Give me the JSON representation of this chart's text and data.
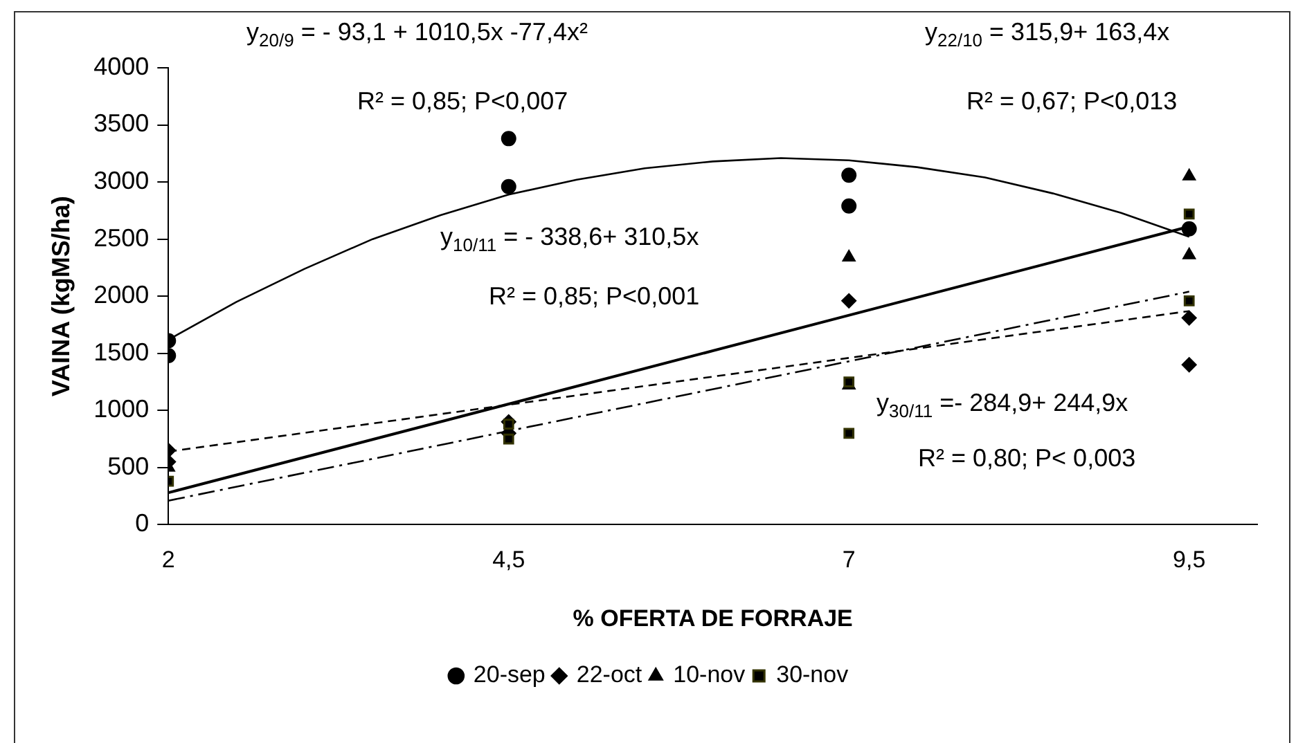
{
  "chart_data": {
    "type": "scatter",
    "xlabel": "% OFERTA DE FORRAJE",
    "ylabel": "VAINA (kgMS/ha)",
    "xlim": [
      2,
      10
    ],
    "xticks": [
      {
        "value": 2,
        "label": "2"
      },
      {
        "value": 4.5,
        "label": "4,5"
      },
      {
        "value": 7,
        "label": "7"
      },
      {
        "value": 9.5,
        "label": "9,5"
      }
    ],
    "ylim": [
      0,
      4000
    ],
    "yticks": [
      0,
      500,
      1000,
      1500,
      2000,
      2500,
      3000,
      3500,
      4000
    ],
    "grid": false,
    "legend": "bottom",
    "series": [
      {
        "name": "20-sep",
        "type": "scatter",
        "marker": "circle",
        "color": "#000000",
        "x": [
          2,
          2,
          4.5,
          4.5,
          7,
          7,
          9.5
        ],
        "values": [
          1610,
          1480,
          3380,
          2960,
          3060,
          2790,
          2590
        ]
      },
      {
        "name": "22-oct",
        "type": "scatter",
        "marker": "diamond",
        "color": "#000000",
        "x": [
          2,
          2,
          4.5,
          4.5,
          7,
          9.5,
          9.5
        ],
        "values": [
          650,
          550,
          900,
          800,
          1960,
          1810,
          1400
        ]
      },
      {
        "name": "10-nov",
        "type": "scatter",
        "marker": "triangle",
        "color": "#000000",
        "x": [
          2,
          7,
          7,
          9.5,
          9.5
        ],
        "values": [
          500,
          2340,
          1220,
          3050,
          2360
        ]
      },
      {
        "name": "30-nov",
        "type": "scatter",
        "marker": "square",
        "color": "#000000",
        "x": [
          2,
          4.5,
          4.5,
          7,
          7,
          9.5,
          9.5
        ],
        "values": [
          380,
          880,
          750,
          1250,
          800,
          2720,
          1960
        ]
      },
      {
        "type": "line",
        "marker": "none",
        "line_style": "solid",
        "color": "#000000",
        "x": [
          2,
          2.5,
          3,
          3.5,
          4,
          4.5,
          5,
          5.5,
          6,
          6.5,
          7,
          7.5,
          8,
          8.5,
          9,
          9.5
        ],
        "values": [
          1620,
          1950,
          2240,
          2500,
          2710,
          2890,
          3020,
          3120,
          3180,
          3210,
          3190,
          3130,
          3040,
          2900,
          2730,
          2520
        ]
      },
      {
        "type": "line",
        "marker": "none",
        "line_style": "dashed",
        "color": "#000000",
        "x": [
          2,
          9.5
        ],
        "values": [
          640,
          1870
        ]
      },
      {
        "type": "line",
        "marker": "none",
        "line_style": "solid",
        "color": "#000000",
        "x": [
          2,
          9.5
        ],
        "values": [
          280,
          2610
        ]
      },
      {
        "type": "line",
        "marker": "none",
        "line_style": "dotted",
        "color": "#000000",
        "x": [
          2,
          9.5
        ],
        "values": [
          210,
          2040
        ]
      }
    ],
    "annotations": [
      "y$_{20/9}$ = - 93,1  + 1010,5x -77,4x²",
      "R² = 0,85; P<0,007",
      "y$_{22/10}$ =  315,9+ 163,4x",
      "R² = 0,67; P<0,013",
      "y$_{10/11}$ = - 338,6+ 310,5x",
      "R² = 0,85; P<0,001",
      "y$_{30/11}$ =- 284,9+ 244,9x",
      "R² = 0,80; P< 0,003"
    ]
  }
}
